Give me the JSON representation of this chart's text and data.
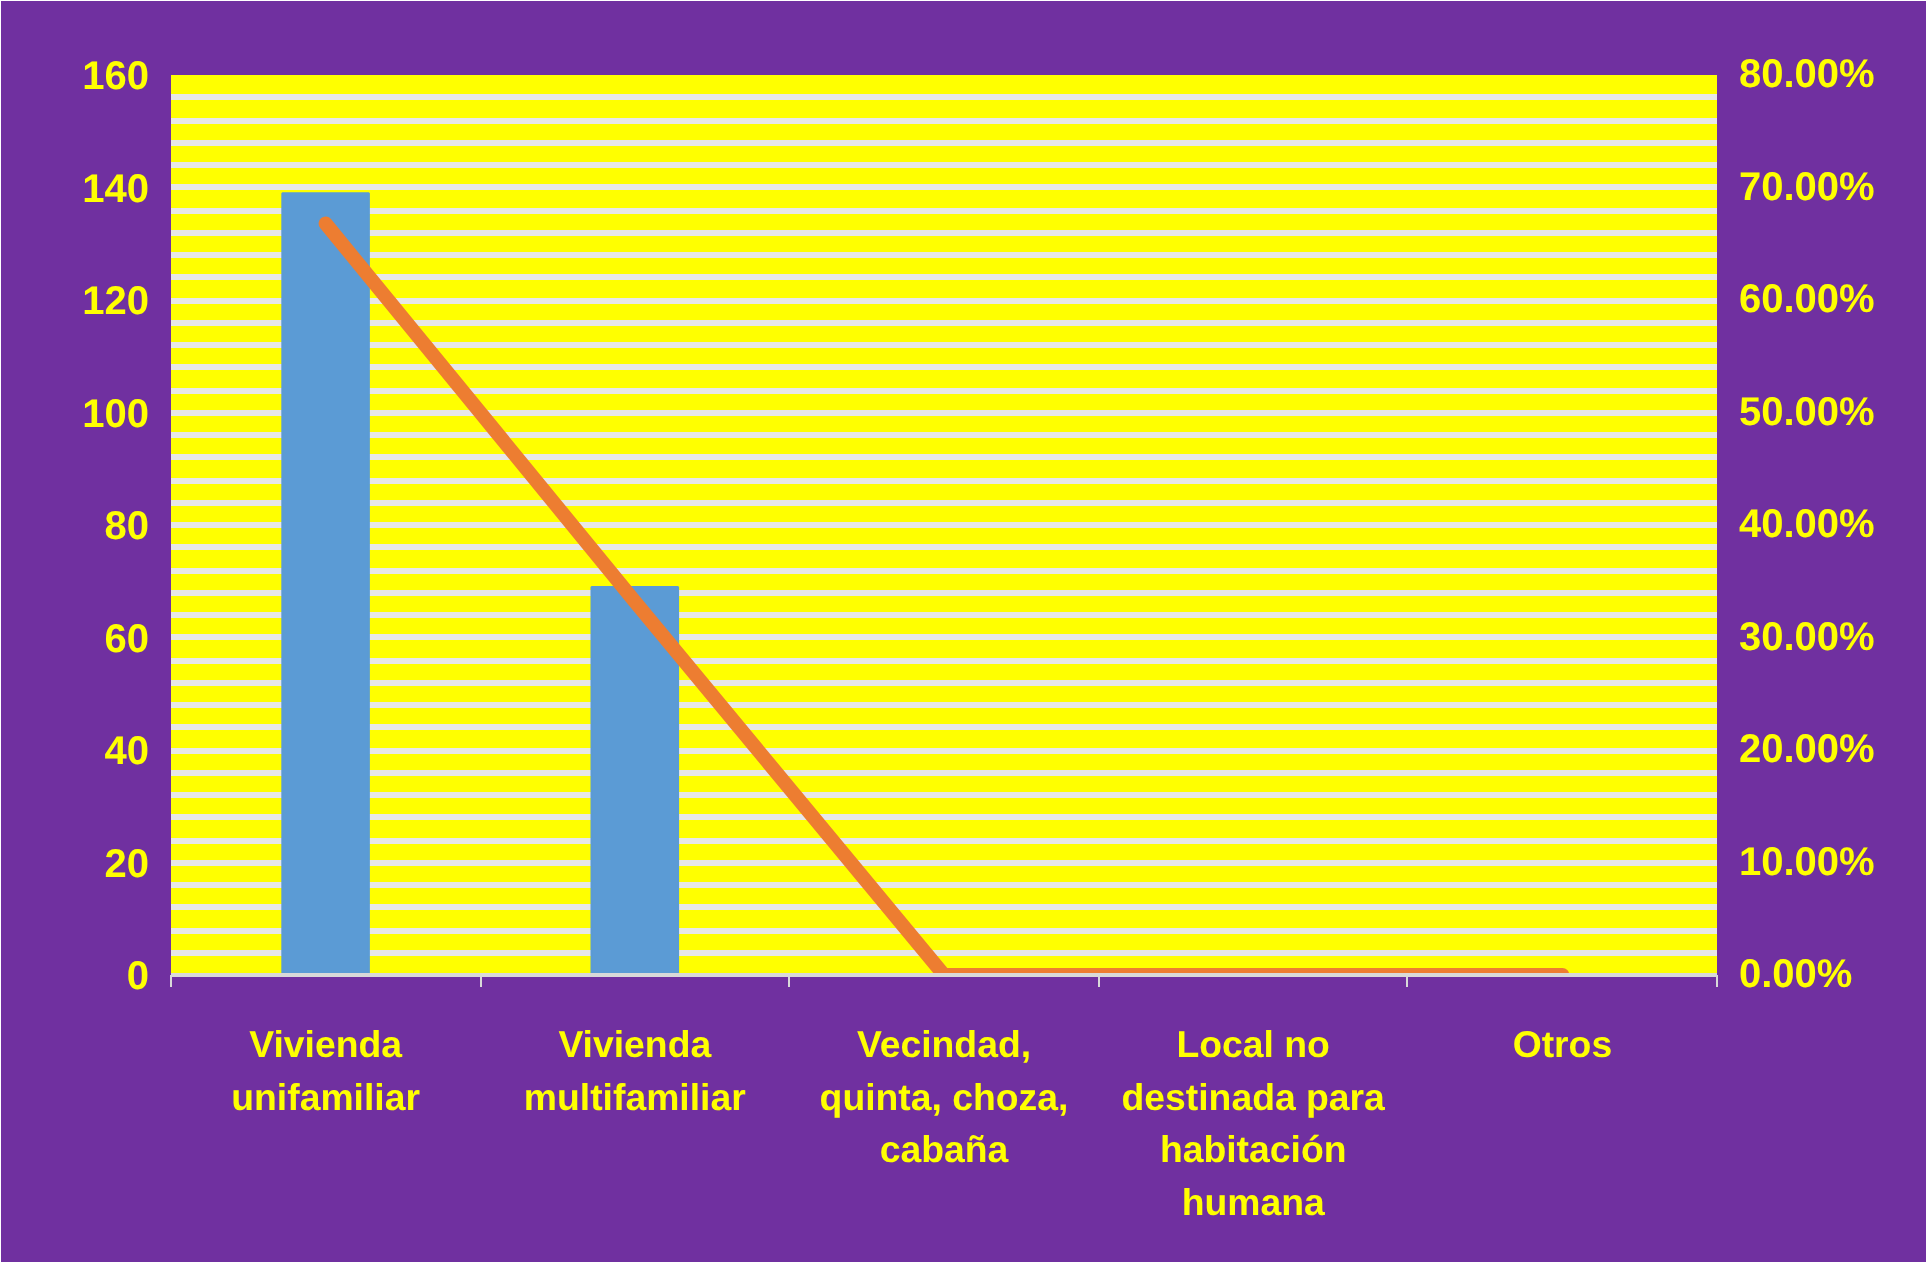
{
  "chart_data": {
    "type": "bar",
    "categories": [
      "Vivienda unifamiliar",
      "Vivienda multifamiliar",
      "Vecindad, quinta, choza, cabaña",
      "Local no destinada para habitación humana",
      "Otros"
    ],
    "series": [
      {
        "color": "#5b9bd5",
        "values": [
          139,
          69,
          0,
          0,
          0
        ]
      },
      {
        "type": "line",
        "axis": "y2",
        "color": "#ed7d31",
        "values": [
          66.8,
          33.2,
          0,
          0,
          0
        ]
      }
    ],
    "ylim": [
      0,
      160
    ],
    "yticks": [
      0,
      20,
      40,
      60,
      80,
      100,
      120,
      140,
      160
    ],
    "y2lim": [
      0,
      80
    ],
    "y2ticks": [
      {
        "value": 0,
        "label": "0.00%"
      },
      {
        "value": 10,
        "label": "10.00%"
      },
      {
        "value": 20,
        "label": "20.00%"
      },
      {
        "value": 30,
        "label": "30.00%"
      },
      {
        "value": 40,
        "label": "40.00%"
      },
      {
        "value": 50,
        "label": "50.00%"
      },
      {
        "value": 60,
        "label": "60.00%"
      },
      {
        "value": 70,
        "label": "70.00%"
      },
      {
        "value": 80,
        "label": "80.00%"
      }
    ],
    "grid": "y",
    "marker": "none",
    "line_style": "solid"
  }
}
